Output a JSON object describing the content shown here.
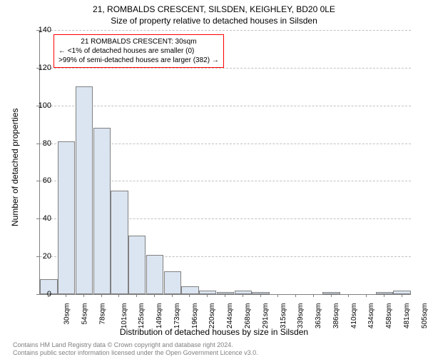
{
  "title_line1": "21, ROMBALDS CRESCENT, SILSDEN, KEIGHLEY, BD20 0LE",
  "title_line2": "Size of property relative to detached houses in Silsden",
  "y_axis_label": "Number of detached properties",
  "x_axis_label": "Distribution of detached houses by size in Silsden",
  "chart": {
    "type": "bar",
    "ylim": [
      0,
      140
    ],
    "ytick_step": 20,
    "yticks": [
      0,
      20,
      40,
      60,
      80,
      100,
      120,
      140
    ],
    "bar_fill": "#dbe5f1",
    "bar_border": "#808080",
    "grid_color": "#c0c0c0",
    "annotation_border": "#ff0000",
    "background": "#ffffff",
    "categories": [
      "30sqm",
      "54sqm",
      "78sqm",
      "101sqm",
      "125sqm",
      "149sqm",
      "173sqm",
      "196sqm",
      "220sqm",
      "244sqm",
      "268sqm",
      "291sqm",
      "315sqm",
      "339sqm",
      "363sqm",
      "386sqm",
      "410sqm",
      "434sqm",
      "458sqm",
      "481sqm",
      "505sqm"
    ],
    "values": [
      8,
      81,
      110,
      88,
      55,
      31,
      21,
      12,
      4,
      2,
      1,
      2,
      1,
      0,
      0,
      0,
      1,
      0,
      0,
      1,
      2
    ]
  },
  "annotation": {
    "line1": "21 ROMBALDS CRESCENT: 30sqm",
    "line2": "← <1% of detached houses are smaller (0)",
    "line3": ">99% of semi-detached houses are larger (382) →"
  },
  "footnote1": "Contains HM Land Registry data © Crown copyright and database right 2024.",
  "footnote2": "Contains public sector information licensed under the Open Government Licence v3.0."
}
